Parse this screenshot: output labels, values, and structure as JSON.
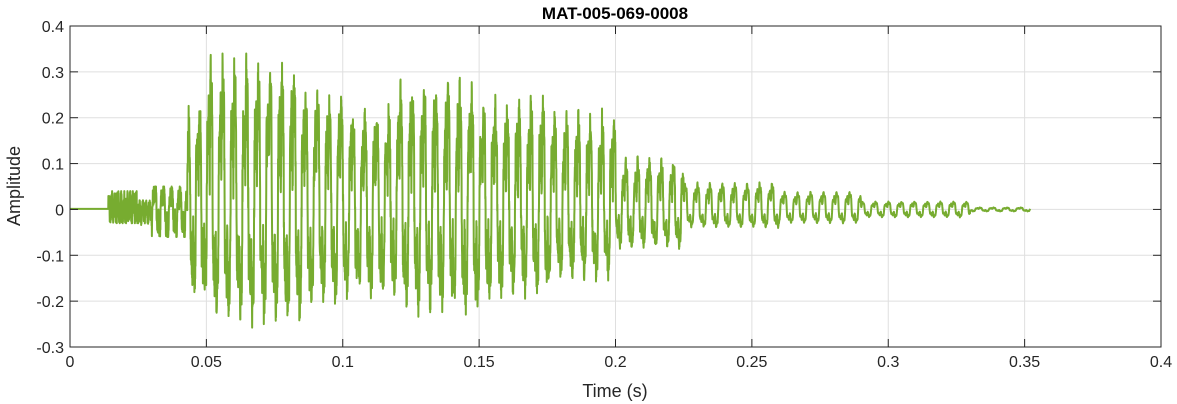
{
  "chart_data": {
    "type": "line",
    "title": "MAT-005-069-0008",
    "xlabel": "Time (s)",
    "ylabel": "Amplitude",
    "xlim": [
      0,
      0.4
    ],
    "ylim": [
      -0.3,
      0.4
    ],
    "grid": true,
    "x_ticks": [
      0,
      0.05,
      0.1,
      0.15,
      0.2,
      0.25,
      0.3,
      0.35,
      0.4
    ],
    "x_tick_labels": [
      "0",
      "0.05",
      "0.1",
      "0.15",
      "0.2",
      "0.25",
      "0.3",
      "0.35",
      "0.4"
    ],
    "y_ticks": [
      -0.3,
      -0.2,
      -0.1,
      0,
      0.1,
      0.2,
      0.3,
      0.4
    ],
    "y_tick_labels": [
      "-0.3",
      "-0.2",
      "-0.1",
      "0",
      "0.1",
      "0.2",
      "0.3",
      "0.4"
    ],
    "series": [
      {
        "color": "#77ac30",
        "segments": [
          {
            "t0": 0.0,
            "t1": 0.014,
            "f": 0,
            "amax": 0.004,
            "amin": 0.004,
            "noise": 0.0
          },
          {
            "t0": 0.014,
            "t1": 0.025,
            "f": 900,
            "amax": 0.04,
            "amin": 0.03,
            "noise": 0.6
          },
          {
            "t0": 0.025,
            "t1": 0.03,
            "f": 800,
            "amax": 0.02,
            "amin": 0.035,
            "noise": 0.5
          },
          {
            "t0": 0.03,
            "t1": 0.043,
            "f": 330,
            "amax": 0.05,
            "amin": 0.06,
            "noise": 0.5
          },
          {
            "t0": 0.043,
            "t1": 0.05,
            "f": 250,
            "amax": 0.24,
            "amin": 0.2,
            "noise": 0.3
          },
          {
            "t0": 0.05,
            "t1": 0.065,
            "f": 230,
            "amax": 0.34,
            "amin": 0.24,
            "noise": 0.25
          },
          {
            "t0": 0.065,
            "t1": 0.085,
            "f": 230,
            "amax": 0.34,
            "amin": 0.26,
            "noise": 0.25
          },
          {
            "t0": 0.085,
            "t1": 0.1,
            "f": 230,
            "amax": 0.27,
            "amin": 0.22,
            "noise": 0.25
          },
          {
            "t0": 0.1,
            "t1": 0.12,
            "f": 230,
            "amax": 0.23,
            "amin": 0.2,
            "noise": 0.25
          },
          {
            "t0": 0.12,
            "t1": 0.15,
            "f": 230,
            "amax": 0.29,
            "amin": 0.24,
            "noise": 0.25
          },
          {
            "t0": 0.15,
            "t1": 0.175,
            "f": 230,
            "amax": 0.25,
            "amin": 0.2,
            "noise": 0.25
          },
          {
            "t0": 0.175,
            "t1": 0.2,
            "f": 230,
            "amax": 0.22,
            "amin": 0.16,
            "noise": 0.25
          },
          {
            "t0": 0.2,
            "t1": 0.225,
            "f": 230,
            "amax": 0.12,
            "amin": 0.09,
            "noise": 0.2
          },
          {
            "t0": 0.225,
            "t1": 0.26,
            "f": 220,
            "amax": 0.065,
            "amin": 0.045,
            "noise": 0.1
          },
          {
            "t0": 0.26,
            "t1": 0.29,
            "f": 210,
            "amax": 0.045,
            "amin": 0.035,
            "noise": 0.05
          },
          {
            "t0": 0.29,
            "t1": 0.33,
            "f": 210,
            "amax": 0.02,
            "amin": 0.02,
            "noise": 0.05
          },
          {
            "t0": 0.33,
            "t1": 0.352,
            "f": 200,
            "amax": 0.005,
            "amin": 0.005,
            "noise": 0.05
          }
        ]
      }
    ]
  }
}
